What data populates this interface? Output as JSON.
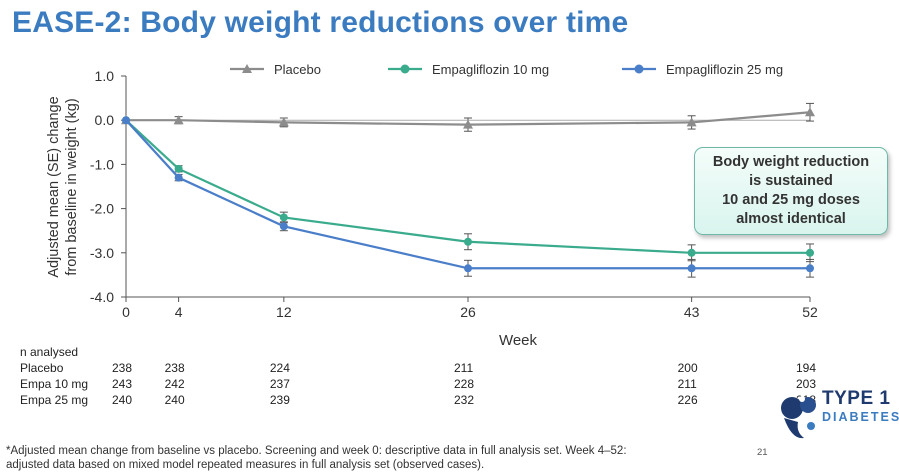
{
  "title": "EASE-2: Body weight reductions over time",
  "chart_data": {
    "type": "line",
    "x": [
      0,
      4,
      12,
      26,
      43,
      52
    ],
    "xlabel": "Week",
    "ylabel_line1": "Adjusted mean (SE) change",
    "ylabel_line2": "from  baseline in weight (kg)",
    "xlim": [
      0,
      52
    ],
    "ylim": [
      -4.0,
      1.0
    ],
    "yticks": [
      "1.0",
      "0.0",
      "-1.0",
      "-2.0",
      "-3.0",
      "-4.0"
    ],
    "xticks": [
      "0",
      "4",
      "12",
      "26",
      "43",
      "52"
    ],
    "legend_position": "top",
    "series": [
      {
        "name": "Placebo",
        "marker": "triangle",
        "color": "#8c8c8c",
        "values": [
          0.0,
          0.0,
          -0.05,
          -0.1,
          -0.05,
          0.18
        ],
        "se": [
          0.0,
          0.08,
          0.1,
          0.15,
          0.15,
          0.2
        ]
      },
      {
        "name": "Empagliflozin 10 mg",
        "marker": "circle",
        "color": "#3aab8d",
        "values": [
          0.0,
          -1.1,
          -2.2,
          -2.75,
          -3.0,
          -3.0
        ],
        "se": [
          0.0,
          0.07,
          0.12,
          0.18,
          0.18,
          0.2
        ]
      },
      {
        "name": "Empagliflozin 25 mg",
        "marker": "circle",
        "color": "#4a7ec9",
        "values": [
          0.0,
          -1.3,
          -2.4,
          -3.35,
          -3.35,
          -3.35
        ],
        "se": [
          0.0,
          0.07,
          0.1,
          0.18,
          0.2,
          0.2
        ]
      }
    ]
  },
  "callout": {
    "line1": "Body weight reduction",
    "line2": "is sustained",
    "line3": "10 and 25 mg doses",
    "line4": "almost identical"
  },
  "n_table": {
    "header_line1": "n analysed",
    "rows": [
      {
        "label": "Placebo",
        "values": [
          "238",
          "238",
          "224",
          "211",
          "200",
          "194"
        ]
      },
      {
        "label": "Empa 10 mg",
        "values": [
          "243",
          "242",
          "237",
          "228",
          "211",
          "203"
        ]
      },
      {
        "label": "Empa 25 mg",
        "values": [
          "240",
          "240",
          "239",
          "232",
          "226",
          "218"
        ]
      }
    ]
  },
  "footnote_line1": "*Adjusted mean change from baseline vs placebo. Screening and week 0: descriptive data in full analysis set. Week 4–52:",
  "footnote_line2": "adjusted data based on mixed model repeated measures in full analysis set (observed cases).",
  "page_number": "21",
  "logo": {
    "line1": "TYPE 1",
    "line2": "DIABETES"
  }
}
